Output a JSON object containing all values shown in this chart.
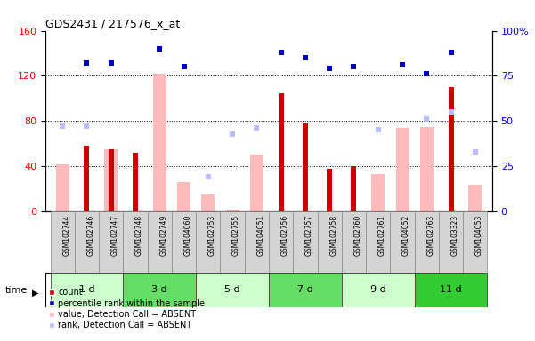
{
  "title": "GDS2431 / 217576_x_at",
  "samples": [
    "GSM102744",
    "GSM102746",
    "GSM102747",
    "GSM102748",
    "GSM102749",
    "GSM104060",
    "GSM102753",
    "GSM102755",
    "GSM104051",
    "GSM102756",
    "GSM102757",
    "GSM102758",
    "GSM102760",
    "GSM102761",
    "GSM104052",
    "GSM102763",
    "GSM103323",
    "GSM104053"
  ],
  "time_groups": [
    {
      "label": "1 d",
      "indices": [
        0,
        1,
        2
      ],
      "color": "#ccffcc"
    },
    {
      "label": "3 d",
      "indices": [
        3,
        4,
        5
      ],
      "color": "#66dd66"
    },
    {
      "label": "5 d",
      "indices": [
        6,
        7,
        8
      ],
      "color": "#ccffcc"
    },
    {
      "label": "7 d",
      "indices": [
        9,
        10,
        11
      ],
      "color": "#66dd66"
    },
    {
      "label": "9 d",
      "indices": [
        12,
        13,
        14
      ],
      "color": "#ccffcc"
    },
    {
      "label": "11 d",
      "indices": [
        15,
        16,
        17
      ],
      "color": "#33cc33"
    }
  ],
  "count": [
    null,
    58,
    55,
    52,
    null,
    null,
    null,
    null,
    null,
    105,
    78,
    38,
    40,
    null,
    null,
    null,
    110,
    null
  ],
  "percentile_rank": [
    null,
    82,
    82,
    null,
    90,
    80,
    null,
    null,
    null,
    88,
    85,
    79,
    80,
    null,
    81,
    76,
    88,
    null
  ],
  "value_absent": [
    42,
    null,
    55,
    null,
    122,
    26,
    15,
    2,
    50,
    null,
    null,
    null,
    null,
    33,
    74,
    75,
    null,
    24
  ],
  "rank_absent": [
    47,
    47,
    null,
    null,
    null,
    null,
    19,
    43,
    46,
    null,
    null,
    null,
    null,
    45,
    null,
    51,
    55,
    33
  ],
  "left_ylim": [
    0,
    160
  ],
  "left_yticks": [
    0,
    40,
    80,
    120,
    160
  ],
  "right_ylim": [
    0,
    100
  ],
  "right_yticks": [
    0,
    25,
    50,
    75,
    100
  ],
  "right_yticklabels": [
    "0",
    "25",
    "50",
    "75",
    "100%"
  ],
  "color_count": "#cc0000",
  "color_percentile": "#0000bb",
  "color_value_absent": "#ffbbbb",
  "color_rank_absent": "#bbbbff",
  "bar_width": 0.55,
  "count_bar_width": 0.22
}
